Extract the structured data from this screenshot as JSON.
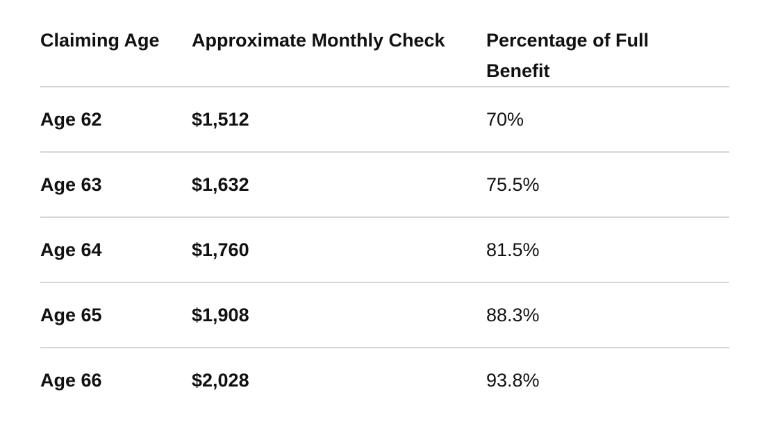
{
  "table": {
    "headers": [
      "Claiming Age",
      "Approximate Monthly Check",
      "Percentage of Full Benefit"
    ],
    "rows": [
      [
        "Age 62",
        "$1,512",
        "70%"
      ],
      [
        "Age 63",
        "$1,632",
        "75.5%"
      ],
      [
        "Age 64",
        "$1,760",
        "81.5%"
      ],
      [
        "Age 65",
        "$1,908",
        "88.3%"
      ],
      [
        "Age 66",
        "$2,028",
        "93.8%"
      ]
    ]
  }
}
